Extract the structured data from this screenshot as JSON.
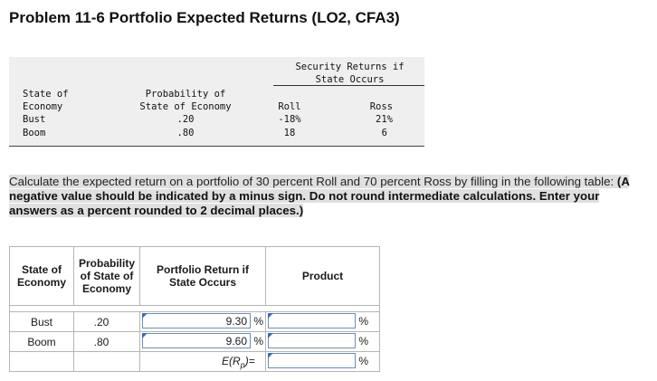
{
  "title": "Problem 11-6 Portfolio Expected Returns (LO2, CFA3)",
  "given": {
    "returns_header_line1": "Security Returns if",
    "returns_header_line2": "State Occurs",
    "col_state_line1": "State of",
    "col_state_line2": "Economy",
    "col_prob_line1": "Probability of",
    "col_prob_line2": "State of Economy",
    "col_roll": "Roll",
    "col_ross": "Ross",
    "rows": [
      {
        "state": "Bust",
        "prob": ".20",
        "roll": "-18%",
        "ross": "21%"
      },
      {
        "state": "Boom",
        "prob": ".80",
        "roll": "18",
        "ross": "6"
      }
    ]
  },
  "instructions": {
    "plain": "Calculate the expected return on a portfolio of 30 percent Roll and 70 percent Ross by filling in the following table:",
    "bold": "(A negative value should be indicated by a minus sign. Do not round intermediate calculations. Enter your answers as a percent rounded to 2 decimal places.)"
  },
  "work_table": {
    "h_state_1": "State of",
    "h_state_2": "Economy",
    "h_prob_1": "Probability",
    "h_prob_2": "of State of",
    "h_prob_3": "Economy",
    "h_ret_1": "Portfolio Return if",
    "h_ret_2": "State Occurs",
    "h_product": "Product",
    "rows": [
      {
        "state": "Bust",
        "prob": ".20",
        "return_value": "9.30",
        "unit": "%",
        "product_value": "",
        "product_unit": "%"
      },
      {
        "state": "Boom",
        "prob": ".80",
        "return_value": "9.60",
        "unit": "%",
        "product_value": "",
        "product_unit": "%"
      }
    ],
    "erp_label": "E(R",
    "erp_sub": "p",
    "erp_tail": ")=",
    "erp_value": "",
    "erp_unit": "%"
  }
}
